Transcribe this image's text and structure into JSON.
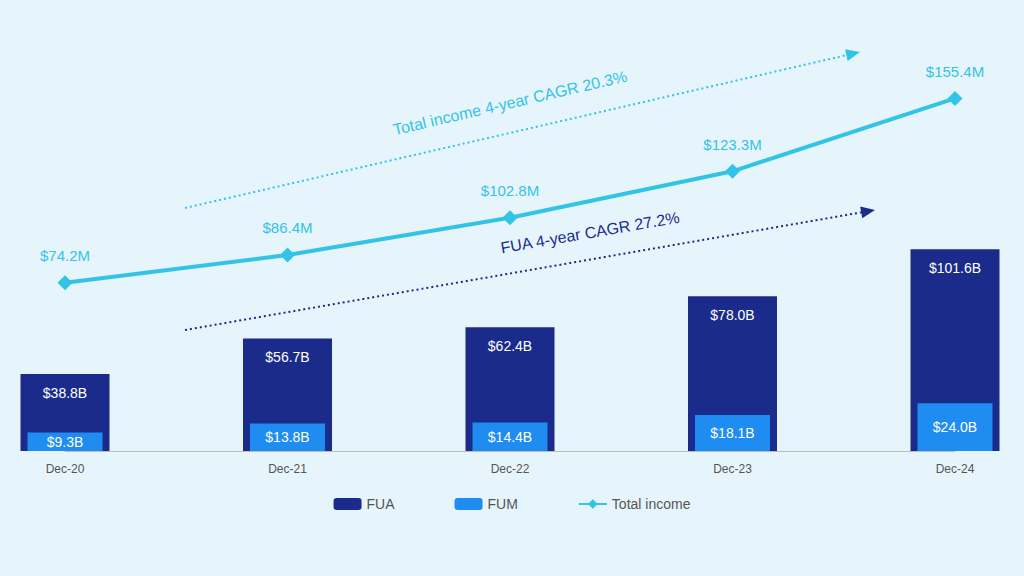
{
  "chart_data": {
    "type": "bar",
    "categories": [
      "Dec-20",
      "Dec-21",
      "Dec-22",
      "Dec-23",
      "Dec-24"
    ],
    "series": [
      {
        "name": "FUA",
        "type": "bar",
        "color": "#1b2b8c",
        "values": [
          38.8,
          56.7,
          62.4,
          78.0,
          101.6
        ],
        "value_labels": [
          "$38.8B",
          "$56.7B",
          "$62.4B",
          "$78.0B",
          "$101.6B"
        ]
      },
      {
        "name": "FUM",
        "type": "bar",
        "color": "#1e8cf0",
        "values": [
          9.3,
          13.8,
          14.4,
          18.1,
          24.0
        ],
        "value_labels": [
          "$9.3B",
          "$13.8B",
          "$14.4B",
          "$18.1B",
          "$24.0B"
        ]
      },
      {
        "name": "Total income",
        "type": "line",
        "axis": "y2",
        "color": "#33c3e6",
        "marker": "diamond",
        "values": [
          74.2,
          86.4,
          102.8,
          123.3,
          155.4
        ],
        "value_labels": [
          "$74.2M",
          "$86.4M",
          "$102.8M",
          "$123.3M",
          "$155.4M"
        ]
      }
    ],
    "annotations": [
      {
        "text": "Total income 4-year CAGR 20.3%",
        "series": "Total income"
      },
      {
        "text": "FUA 4-year CAGR 27.2%",
        "series": "FUA"
      }
    ],
    "ylim": [
      0,
      200
    ],
    "yticks": [
      0,
      200
    ],
    "y2lim": [
      0,
      175
    ],
    "y2ticks": [
      0,
      175
    ],
    "grid": false,
    "legend": "bottom",
    "data_labels": true,
    "tick_labels": "x"
  }
}
